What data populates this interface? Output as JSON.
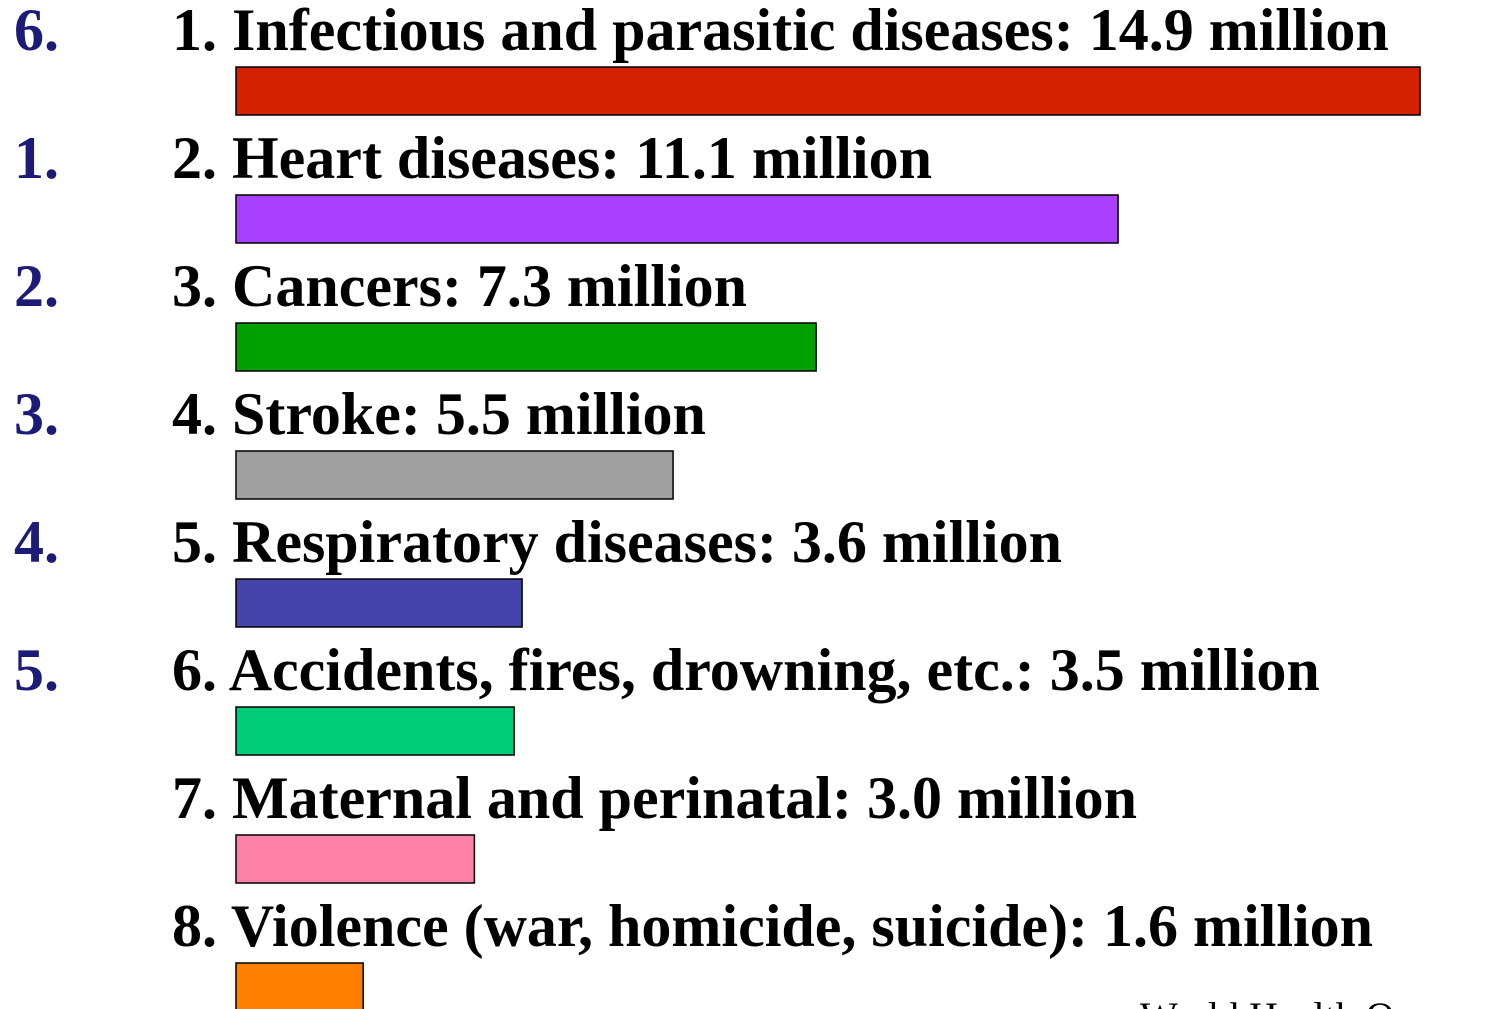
{
  "chart_data": {
    "type": "bar",
    "orientation": "horizontal",
    "categories": [
      "1. Infectious and parasitic diseases: 14.9 million",
      "2. Heart diseases: 11.1 million",
      "3. Cancers: 7.3 million",
      "4. Stroke: 5.5 million",
      "5. Respiratory diseases: 3.6 million",
      "6. Accidents, fires, drowning, etc.: 3.5 million",
      "7. Maternal and perinatal: 3.0 million",
      "8. Violence (war, homicide, suicide): 1.6 million"
    ],
    "values": [
      14.9,
      11.1,
      7.3,
      5.5,
      3.6,
      3.5,
      3.0,
      1.6
    ],
    "colors": [
      "#d42200",
      "#aa40ff",
      "#00a000",
      "#a0a0a0",
      "#4444aa",
      "#00cc77",
      "#ff82aa",
      "#ff7f00"
    ],
    "side_labels": [
      "6.",
      "1.",
      "2.",
      "3.",
      "4.",
      "5."
    ],
    "xlim": [
      0,
      15
    ],
    "source": "World Health O"
  }
}
